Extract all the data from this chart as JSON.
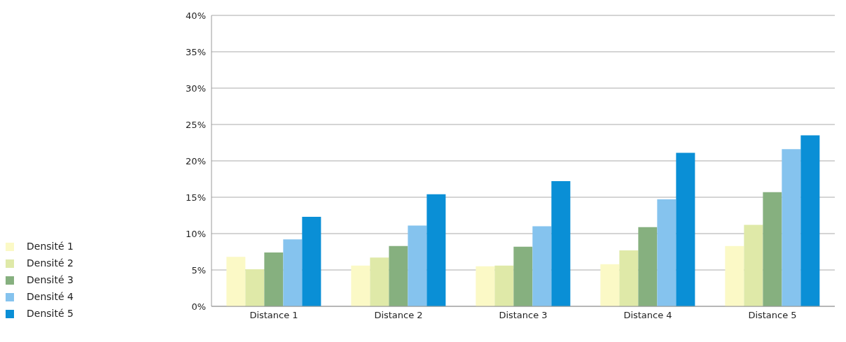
{
  "chart_data": {
    "type": "bar",
    "categories": [
      "Distance 1",
      "Distance 2",
      "Distance 3",
      "Distance 4",
      "Distance 5"
    ],
    "series": [
      {
        "name": "Densité 1",
        "color": "#fbf9c6",
        "values": [
          6.8,
          5.6,
          5.5,
          5.8,
          8.3
        ]
      },
      {
        "name": "Densité 2",
        "color": "#dfe9a8",
        "values": [
          5.1,
          6.7,
          5.6,
          7.7,
          11.2
        ]
      },
      {
        "name": "Densité 3",
        "color": "#86b07f",
        "values": [
          7.4,
          8.3,
          8.2,
          10.9,
          15.7
        ]
      },
      {
        "name": "Densité 4",
        "color": "#85c3ee",
        "values": [
          9.2,
          11.1,
          11.0,
          14.7,
          21.6
        ]
      },
      {
        "name": "Densité 5",
        "color": "#0a8fd6",
        "values": [
          12.3,
          15.4,
          17.2,
          21.1,
          23.5
        ]
      }
    ],
    "ylim": [
      0,
      40
    ],
    "yticks": [
      {
        "value": 0,
        "label": "0%"
      },
      {
        "value": 5,
        "label": "5%"
      },
      {
        "value": 10,
        "label": "10%"
      },
      {
        "value": 15,
        "label": "15%"
      },
      {
        "value": 20,
        "label": "20%"
      },
      {
        "value": 25,
        "label": "25%"
      },
      {
        "value": 30,
        "label": "30%"
      },
      {
        "value": 35,
        "label": "35%"
      },
      {
        "value": 40,
        "label": "40%"
      }
    ],
    "grid": "y",
    "legend": "left"
  }
}
